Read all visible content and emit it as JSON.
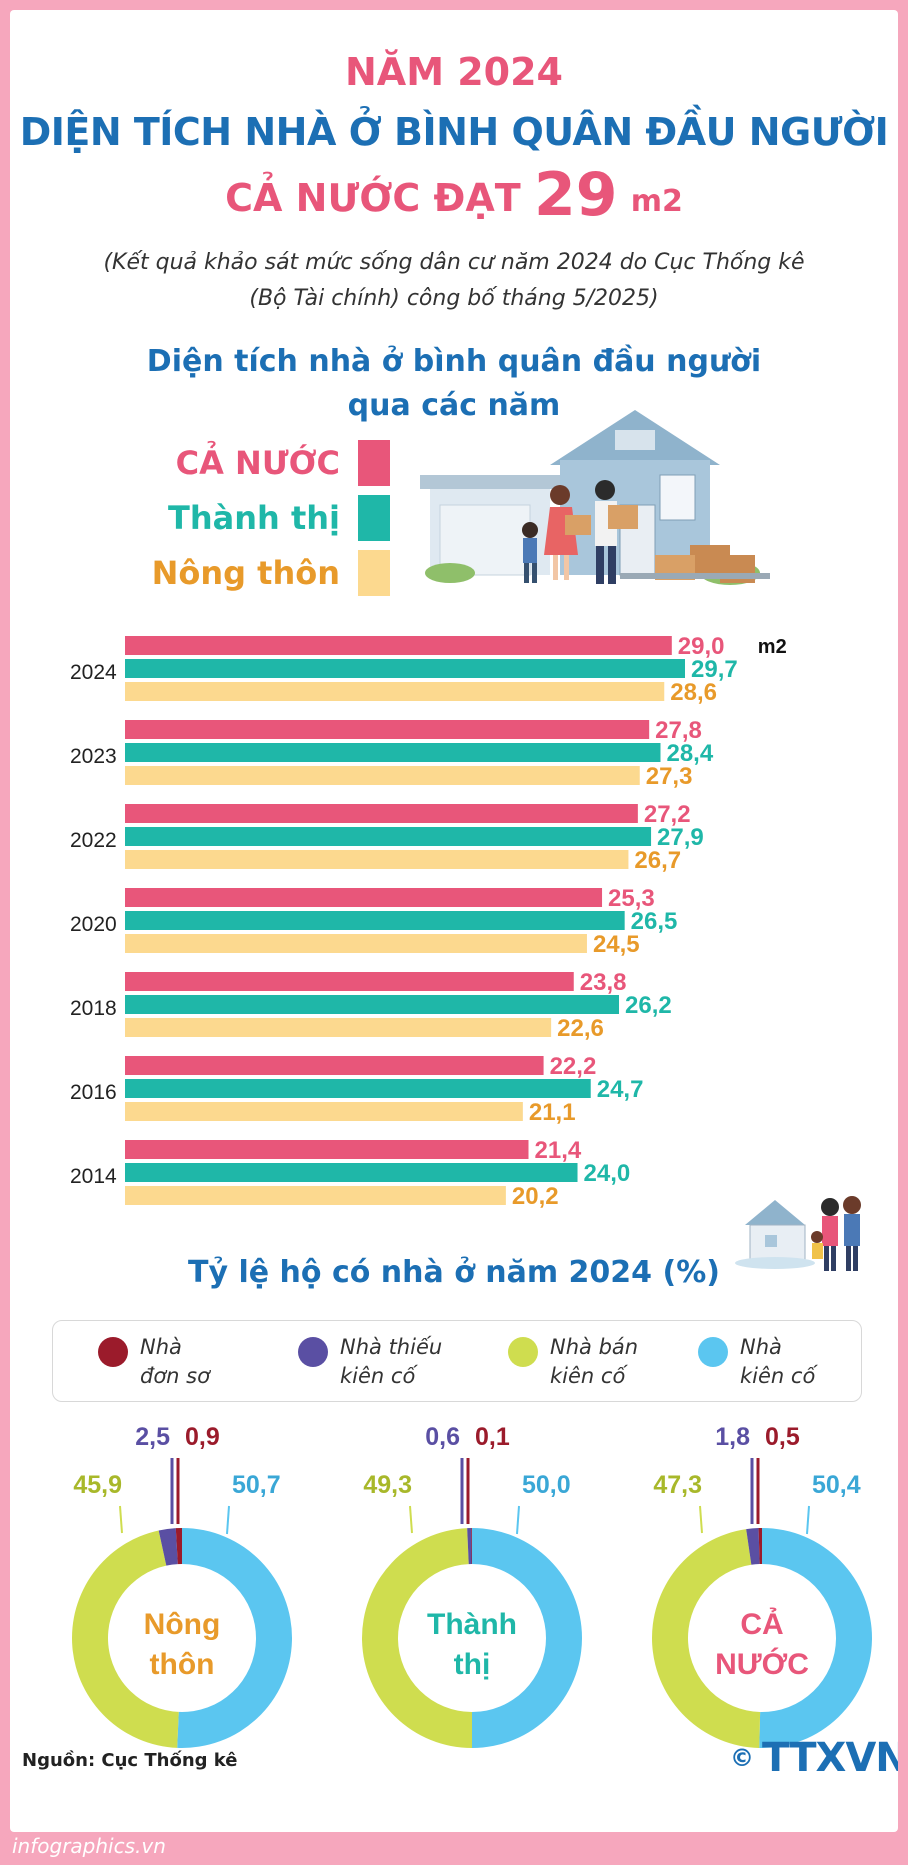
{
  "header": {
    "line1": "NĂM 2024",
    "line2": "DIỆN TÍCH NHÀ Ở BÌNH QUÂN ĐẦU NGƯỜI",
    "line3_prefix": "CẢ NƯỚC ĐẠT",
    "line3_value": "29",
    "line3_unit": "m2",
    "subtitle_1": "(Kết quả khảo sát mức sống dân cư năm 2024 do Cục Thống kê",
    "subtitle_2": "(Bộ Tài chính) công bố tháng 5/2025)"
  },
  "section1": {
    "title_1": "Diện tích nhà ở bình quân đầu người",
    "title_2": "qua các năm"
  },
  "section2": {
    "title": "Tỷ lệ hộ có nhà ở năm 2024 (%)"
  },
  "footer": {
    "source": "Nguồn: Cục Thống kê",
    "site": "infographics.vn",
    "logo_mark": "©",
    "logo_text": "TTXVN"
  },
  "colors": {
    "ca_nuoc": "#e8567a",
    "thanh_thi": "#1fb7a8",
    "nong_thon": "#fcd98f",
    "nong_thon_label": "#e89a2a",
    "don_so": "#9b1b2b",
    "thieu_kien_co": "#5a4fa3",
    "ban_kien_co": "#cfdd4f",
    "kien_co": "#5bc6f0"
  },
  "chart_data": [
    {
      "type": "bar",
      "orientation": "horizontal",
      "title": "Diện tích nhà ở bình quân đầu người qua các năm",
      "unit": "m2",
      "categories": [
        "2024",
        "2023",
        "2022",
        "2020",
        "2018",
        "2016",
        "2014"
      ],
      "series": [
        {
          "name": "CẢ NƯỚC",
          "values": [
            29.0,
            27.8,
            27.2,
            25.3,
            23.8,
            22.2,
            21.4
          ]
        },
        {
          "name": "Thành thị",
          "values": [
            29.7,
            28.4,
            27.9,
            26.5,
            26.2,
            24.7,
            24.0
          ]
        },
        {
          "name": "Nông thôn",
          "values": [
            28.6,
            27.3,
            26.7,
            24.5,
            22.6,
            21.1,
            20.2
          ]
        }
      ],
      "value_labels": [
        [
          "29,0",
          "27,8",
          "27,2",
          "25,3",
          "23,8",
          "22,2",
          "21,4"
        ],
        [
          "29,7",
          "28,4",
          "27,9",
          "26,5",
          "26,2",
          "24,7",
          "24,0"
        ],
        [
          "28,6",
          "27,3",
          "26,7",
          "24,5",
          "22,6",
          "21,1",
          "20,2"
        ]
      ],
      "legend_position": "top-left"
    },
    {
      "type": "pie",
      "title": "Tỷ lệ hộ có nhà ở năm 2024 (%)",
      "slice_names": [
        "Nhà đơn sơ",
        "Nhà thiếu kiên cố",
        "Nhà bán kiên cố",
        "Nhà kiên cố"
      ],
      "charts": [
        {
          "label_1": "Nông",
          "label_2": "thôn",
          "values": [
            0.9,
            2.5,
            45.9,
            50.7
          ],
          "value_labels": [
            "0,9",
            "2,5",
            "45,9",
            "50,7"
          ]
        },
        {
          "label_1": "Thành",
          "label_2": "thị",
          "values": [
            0.1,
            0.6,
            49.3,
            50.0
          ],
          "value_labels": [
            "0,1",
            "0,6",
            "49,3",
            "50,0"
          ]
        },
        {
          "label_1": "CẢ",
          "label_2": "NƯỚC",
          "values": [
            0.5,
            1.8,
            47.3,
            50.4
          ],
          "value_labels": [
            "0,5",
            "1,8",
            "47,3",
            "50,4"
          ]
        }
      ]
    }
  ],
  "legend_top": [
    "CẢ NƯỚC",
    "Thành thị",
    "Nông thôn"
  ],
  "legend_pie": [
    {
      "l1": "Nhà",
      "l2": "đơn sơ"
    },
    {
      "l1": "Nhà thiếu",
      "l2": "kiên cố"
    },
    {
      "l1": "Nhà bán",
      "l2": "kiên cố"
    },
    {
      "l1": "Nhà",
      "l2": "kiên cố"
    }
  ]
}
